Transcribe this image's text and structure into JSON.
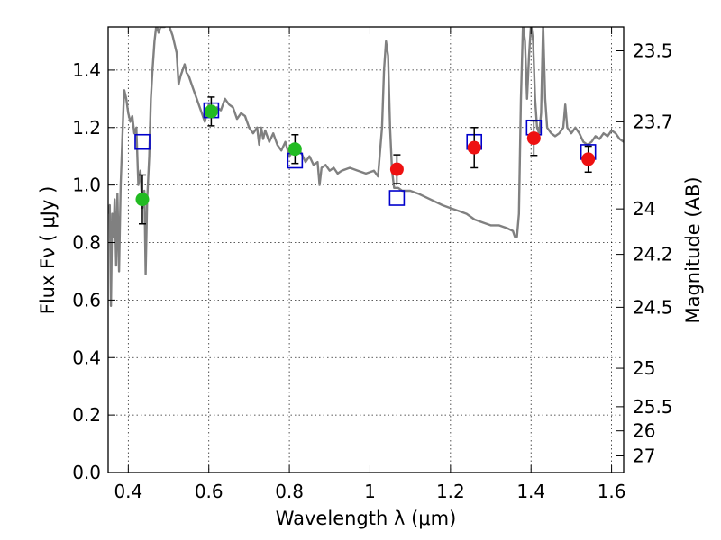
{
  "chart_data": {
    "type": "scatter",
    "xlabel": "Wavelength  λ (μm)",
    "ylabel": "Flux  Fν  ( μJy )",
    "ylabel_right": "Magnitude (AB)",
    "xlim": [
      0.35,
      1.63
    ],
    "ylim": [
      0.0,
      1.55
    ],
    "grid": true,
    "x_ticks": [
      {
        "value": 0.4,
        "label": "0.4"
      },
      {
        "value": 0.6,
        "label": "0.6"
      },
      {
        "value": 0.8,
        "label": "0.8"
      },
      {
        "value": 1.0,
        "label": "1"
      },
      {
        "value": 1.2,
        "label": "1.2"
      },
      {
        "value": 1.4,
        "label": "1.4"
      },
      {
        "value": 1.6,
        "label": "1.6"
      }
    ],
    "y_ticks": [
      {
        "value": 0.0,
        "label": "0.0"
      },
      {
        "value": 0.2,
        "label": "0.2"
      },
      {
        "value": 0.4,
        "label": "0.4"
      },
      {
        "value": 0.6,
        "label": "0.6"
      },
      {
        "value": 0.8,
        "label": "0.8"
      },
      {
        "value": 1.0,
        "label": "1.0"
      },
      {
        "value": 1.2,
        "label": "1.2"
      },
      {
        "value": 1.4,
        "label": "1.4"
      }
    ],
    "right_ticks": [
      {
        "label": "23.5",
        "flux": 1.467
      },
      {
        "label": "23.7",
        "flux": 1.22
      },
      {
        "label": "24",
        "flux": 0.917
      },
      {
        "label": "24.2",
        "flux": 0.759
      },
      {
        "label": "24.5",
        "flux": 0.575
      },
      {
        "label": "25",
        "flux": 0.363
      },
      {
        "label": "25.5",
        "flux": 0.229
      },
      {
        "label": "26",
        "flux": 0.145
      },
      {
        "label": "27",
        "flux": 0.058
      }
    ],
    "colors": {
      "model": "#808080",
      "optical": "#22bb22",
      "nir": "#ee1111",
      "model_photometry": "#0000cc",
      "errorbar": "#000000"
    },
    "series": [
      {
        "marker": "line",
        "points": [
          [
            0.35,
            0.9
          ],
          [
            0.354,
            0.93
          ],
          [
            0.357,
            0.58
          ],
          [
            0.36,
            0.9
          ],
          [
            0.363,
            0.82
          ],
          [
            0.366,
            0.95
          ],
          [
            0.37,
            0.72
          ],
          [
            0.373,
            0.97
          ],
          [
            0.377,
            0.7
          ],
          [
            0.381,
            1.0
          ],
          [
            0.385,
            1.15
          ],
          [
            0.388,
            1.27
          ],
          [
            0.39,
            1.33
          ],
          [
            0.395,
            1.3
          ],
          [
            0.4,
            1.25
          ],
          [
            0.405,
            1.22
          ],
          [
            0.41,
            1.24
          ],
          [
            0.415,
            1.18
          ],
          [
            0.42,
            1.2
          ],
          [
            0.425,
            1.0
          ],
          [
            0.43,
            1.05
          ],
          [
            0.435,
            0.92
          ],
          [
            0.44,
            0.98
          ],
          [
            0.443,
            0.69
          ],
          [
            0.447,
            0.95
          ],
          [
            0.452,
            1.1
          ],
          [
            0.456,
            1.3
          ],
          [
            0.46,
            1.4
          ],
          [
            0.465,
            1.5
          ],
          [
            0.47,
            1.56
          ],
          [
            0.475,
            1.53
          ],
          [
            0.48,
            1.55
          ],
          [
            0.49,
            1.55
          ],
          [
            0.5,
            1.56
          ],
          [
            0.51,
            1.52
          ],
          [
            0.52,
            1.46
          ],
          [
            0.525,
            1.35
          ],
          [
            0.53,
            1.38
          ],
          [
            0.535,
            1.4
          ],
          [
            0.54,
            1.42
          ],
          [
            0.545,
            1.39
          ],
          [
            0.55,
            1.38
          ],
          [
            0.56,
            1.34
          ],
          [
            0.57,
            1.3
          ],
          [
            0.58,
            1.26
          ],
          [
            0.59,
            1.22
          ],
          [
            0.6,
            1.28
          ],
          [
            0.61,
            1.25
          ],
          [
            0.62,
            1.27
          ],
          [
            0.63,
            1.26
          ],
          [
            0.64,
            1.3
          ],
          [
            0.65,
            1.28
          ],
          [
            0.66,
            1.27
          ],
          [
            0.67,
            1.23
          ],
          [
            0.68,
            1.25
          ],
          [
            0.69,
            1.24
          ],
          [
            0.7,
            1.2
          ],
          [
            0.71,
            1.18
          ],
          [
            0.72,
            1.2
          ],
          [
            0.725,
            1.14
          ],
          [
            0.73,
            1.2
          ],
          [
            0.735,
            1.16
          ],
          [
            0.74,
            1.19
          ],
          [
            0.75,
            1.15
          ],
          [
            0.76,
            1.18
          ],
          [
            0.77,
            1.14
          ],
          [
            0.78,
            1.12
          ],
          [
            0.79,
            1.15
          ],
          [
            0.8,
            1.1
          ],
          [
            0.81,
            1.12
          ],
          [
            0.82,
            1.13
          ],
          [
            0.83,
            1.11
          ],
          [
            0.84,
            1.08
          ],
          [
            0.85,
            1.1
          ],
          [
            0.86,
            1.07
          ],
          [
            0.87,
            1.08
          ],
          [
            0.875,
            1.0
          ],
          [
            0.88,
            1.06
          ],
          [
            0.89,
            1.07
          ],
          [
            0.9,
            1.05
          ],
          [
            0.91,
            1.06
          ],
          [
            0.92,
            1.04
          ],
          [
            0.93,
            1.05
          ],
          [
            0.95,
            1.06
          ],
          [
            0.97,
            1.05
          ],
          [
            0.99,
            1.04
          ],
          [
            1.01,
            1.05
          ],
          [
            1.02,
            1.03
          ],
          [
            1.03,
            1.2
          ],
          [
            1.035,
            1.4
          ],
          [
            1.04,
            1.5
          ],
          [
            1.045,
            1.45
          ],
          [
            1.05,
            1.2
          ],
          [
            1.055,
            1.05
          ],
          [
            1.06,
            0.99
          ],
          [
            1.07,
            0.99
          ],
          [
            1.08,
            0.98
          ],
          [
            1.1,
            0.98
          ],
          [
            1.12,
            0.97
          ],
          [
            1.15,
            0.95
          ],
          [
            1.18,
            0.93
          ],
          [
            1.2,
            0.92
          ],
          [
            1.22,
            0.91
          ],
          [
            1.24,
            0.9
          ],
          [
            1.26,
            0.88
          ],
          [
            1.28,
            0.87
          ],
          [
            1.3,
            0.86
          ],
          [
            1.32,
            0.86
          ],
          [
            1.34,
            0.85
          ],
          [
            1.355,
            0.84
          ],
          [
            1.36,
            0.82
          ],
          [
            1.365,
            0.82
          ],
          [
            1.37,
            0.9
          ],
          [
            1.375,
            1.3
          ],
          [
            1.38,
            1.56
          ],
          [
            1.385,
            1.5
          ],
          [
            1.39,
            1.3
          ],
          [
            1.395,
            1.45
          ],
          [
            1.4,
            1.56
          ],
          [
            1.405,
            1.5
          ],
          [
            1.41,
            1.3
          ],
          [
            1.415,
            1.2
          ],
          [
            1.42,
            1.18
          ],
          [
            1.425,
            1.25
          ],
          [
            1.43,
            1.56
          ],
          [
            1.435,
            1.3
          ],
          [
            1.44,
            1.2
          ],
          [
            1.45,
            1.18
          ],
          [
            1.46,
            1.17
          ],
          [
            1.47,
            1.18
          ],
          [
            1.48,
            1.2
          ],
          [
            1.485,
            1.28
          ],
          [
            1.49,
            1.2
          ],
          [
            1.5,
            1.18
          ],
          [
            1.51,
            1.2
          ],
          [
            1.52,
            1.18
          ],
          [
            1.53,
            1.15
          ],
          [
            1.54,
            1.14
          ],
          [
            1.55,
            1.15
          ],
          [
            1.56,
            1.17
          ],
          [
            1.57,
            1.16
          ],
          [
            1.58,
            1.18
          ],
          [
            1.59,
            1.17
          ],
          [
            1.6,
            1.19
          ],
          [
            1.61,
            1.18
          ],
          [
            1.62,
            1.16
          ],
          [
            1.63,
            1.15
          ]
        ]
      },
      {
        "marker": "circle",
        "points": [
          {
            "x": 0.435,
            "y": 0.95,
            "err": 0.085
          },
          {
            "x": 0.606,
            "y": 1.256,
            "err": 0.05
          },
          {
            "x": 0.814,
            "y": 1.125,
            "err": 0.05
          }
        ]
      },
      {
        "marker": "circle",
        "points": [
          {
            "x": 1.067,
            "y": 1.055,
            "err": 0.05
          },
          {
            "x": 1.259,
            "y": 1.13,
            "err": 0.07
          },
          {
            "x": 1.407,
            "y": 1.163,
            "err": 0.06
          },
          {
            "x": 1.542,
            "y": 1.09,
            "err": 0.045
          }
        ]
      },
      {
        "marker": "square",
        "points": [
          {
            "x": 0.435,
            "y": 1.15
          },
          {
            "x": 0.606,
            "y": 1.26
          },
          {
            "x": 0.814,
            "y": 1.085
          },
          {
            "x": 1.067,
            "y": 0.955
          },
          {
            "x": 1.259,
            "y": 1.15
          },
          {
            "x": 1.407,
            "y": 1.2
          },
          {
            "x": 1.542,
            "y": 1.115
          }
        ]
      }
    ]
  }
}
